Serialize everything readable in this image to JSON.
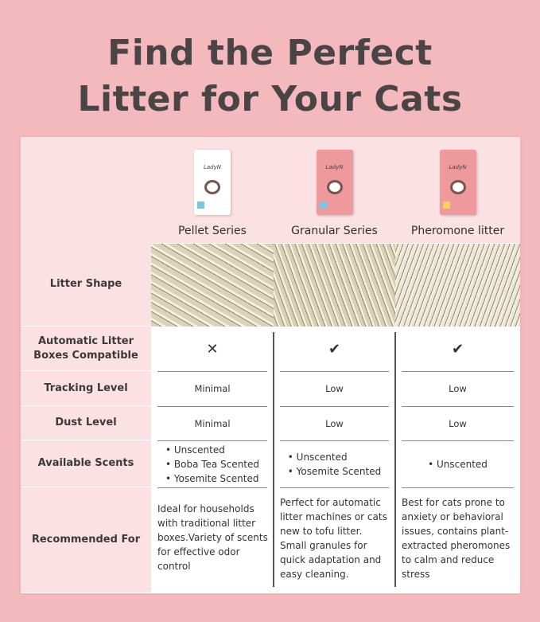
{
  "title_line1": "Find the Perfect",
  "title_line2": "Litter for Your Cats",
  "row_labels": {
    "shape": "Litter Shape",
    "auto": "Automatic Litter Boxes Compatible",
    "tracking": "Tracking Level",
    "dust": "Dust Level",
    "scents": "Available Scents",
    "recommended": "Recommended For"
  },
  "products": [
    {
      "name": "Pellet Series",
      "brand": "LadyN",
      "package_color": "#ffffff",
      "tag_color": "#7cc4e4",
      "texture_color": "#d9d3b8",
      "auto_icon": "cross-icon",
      "auto": "✕",
      "tracking": "Minimal",
      "dust": "Minimal",
      "scents": [
        "Unscented",
        "Boba Tea Scented",
        "Yosemite Scented"
      ],
      "recommended": "Ideal for households with traditional litter boxes.Variety of scents for effective odor control"
    },
    {
      "name": "Granular Series",
      "brand": "LadyN",
      "package_color": "#ee9a9c",
      "tag_color": "#7cc4e4",
      "texture_color": "#d8d0b2",
      "auto_icon": "checkmark-icon",
      "auto": "✔",
      "tracking": "Low",
      "dust": "Low",
      "scents": [
        "Unscented",
        "Yosemite Scented"
      ],
      "recommended": "Perfect for automatic litter machines or cats new to tofu litter. Small granules for quick adaptation and easy cleaning."
    },
    {
      "name": "Pheromone litter",
      "brand": "LadyN",
      "package_color": "#ee9a9c",
      "tag_color": "#f6d54a",
      "texture_color": "#ece6d6",
      "auto_icon": "checkmark-icon",
      "auto": "✔",
      "tracking": "Low",
      "dust": "Low",
      "scents": [
        "Unscented"
      ],
      "recommended": "Best for cats prone to anxiety or behavioral issues, contains plant-extracted pheromones to calm and reduce stress"
    }
  ]
}
